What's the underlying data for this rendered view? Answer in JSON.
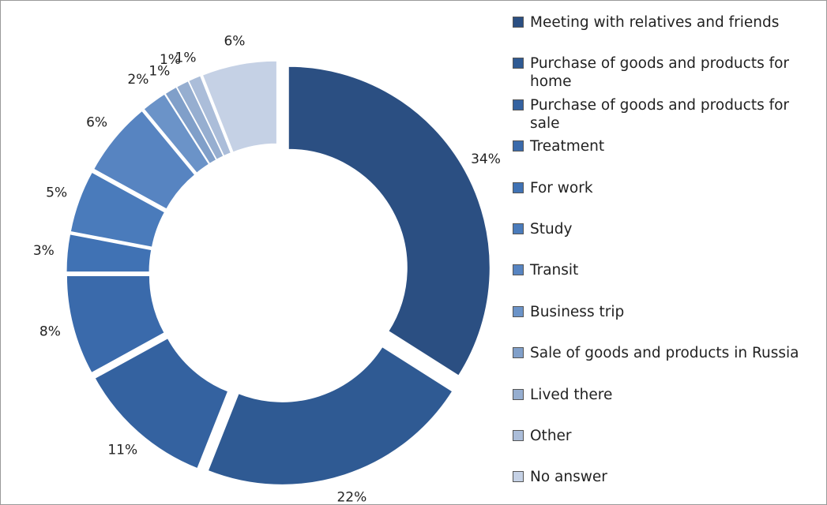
{
  "chart_data": {
    "type": "donut",
    "categories": [
      "Meeting with relatives and friends",
      "Purchase of goods and products for home",
      "Purchase of goods and products for sale",
      "Treatment",
      "For work",
      "Study",
      "Transit",
      "Business trip",
      "Sale of goods and products in Russia",
      "Lived there",
      "Other",
      "No answer"
    ],
    "values": [
      34,
      22,
      11,
      8,
      3,
      5,
      6,
      2,
      1,
      1,
      1,
      6
    ],
    "value_labels": [
      "34%",
      "22%",
      "11%",
      "8%",
      "3%",
      "5%",
      "6%",
      "2%",
      "1%",
      "1%",
      "1%",
      "6%"
    ],
    "colors": [
      "#2b4f82",
      "#2f5a93",
      "#3462a0",
      "#3a6aab",
      "#4072b4",
      "#4a7bbb",
      "#5784c1",
      "#6b93c8",
      "#809fc9",
      "#96aed0",
      "#abbdd9",
      "#c5d1e5"
    ],
    "legend": "right"
  }
}
